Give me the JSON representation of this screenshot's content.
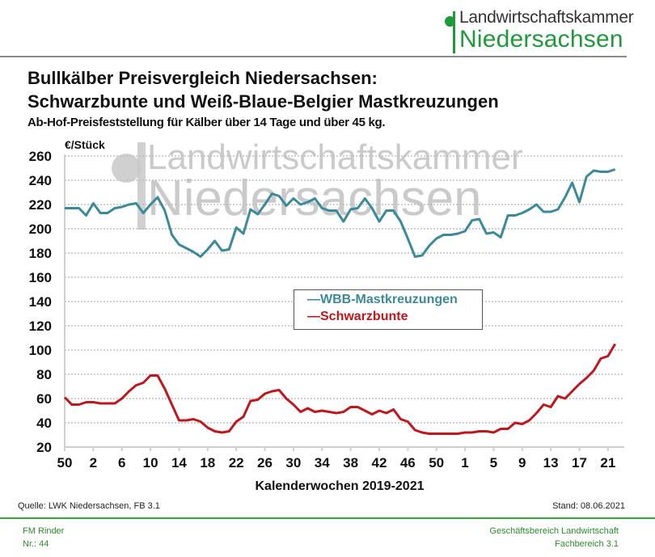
{
  "header": {
    "logo_line1": "Landwirtschaftskammer",
    "logo_line2": "Niedersachsen",
    "title_line1": "Bullkälber Preisvergleich Niedersachsen:",
    "title_line2": "Schwarzbunte und Weiß-Blaue-Belgier Mastkreuzungen",
    "subtitle": "Ab-Hof-Preisfeststellung für Kälber über 14 Tage und über 45 kg."
  },
  "watermark": {
    "line1": "Landwirtschaftskammer",
    "line2": "Niedersachsen"
  },
  "footer": {
    "source": "Quelle: LWK Niedersachsen,  FB 3.1",
    "date": "Stand: 08.06.2021",
    "left_line1": "FM Rinder",
    "left_line2": "Nr.: 44",
    "right_line1": "Geschäftsbereich Landwirtschaft",
    "right_line2": "Fachbereich 3.1"
  },
  "colors": {
    "wbb": "#3a8a9c",
    "schwarzbunte": "#c0171d",
    "brand_green": "#1f9a3a"
  },
  "chart_data": {
    "type": "line",
    "title": "Bullkälber Preisvergleich Niedersachsen: Schwarzbunte und Weiß-Blaue-Belgier Mastkreuzungen",
    "ylabel": "€/Stück",
    "xlabel": "Kalenderwochen  2019-2021",
    "ylim": [
      20,
      260
    ],
    "yticks": [
      20,
      40,
      60,
      80,
      100,
      120,
      140,
      160,
      180,
      200,
      220,
      240,
      260
    ],
    "grid": true,
    "legend_position": "center",
    "x": [
      "50/2019",
      "51/2019",
      "52/2019",
      "1/2020",
      "2/2020",
      "3/2020",
      "4/2020",
      "5/2020",
      "6/2020",
      "7/2020",
      "8/2020",
      "9/2020",
      "10/2020",
      "11/2020",
      "12/2020",
      "13/2020",
      "14/2020",
      "15/2020",
      "16/2020",
      "17/2020",
      "18/2020",
      "19/2020",
      "20/2020",
      "21/2020",
      "22/2020",
      "23/2020",
      "24/2020",
      "25/2020",
      "26/2020",
      "27/2020",
      "28/2020",
      "29/2020",
      "30/2020",
      "31/2020",
      "32/2020",
      "33/2020",
      "34/2020",
      "35/2020",
      "36/2020",
      "37/2020",
      "38/2020",
      "39/2020",
      "40/2020",
      "41/2020",
      "42/2020",
      "43/2020",
      "44/2020",
      "45/2020",
      "46/2020",
      "47/2020",
      "48/2020",
      "49/2020",
      "50/2020",
      "51/2020",
      "52/2020",
      "53/2020",
      "1/2021",
      "2/2021",
      "3/2021",
      "4/2021",
      "5/2021",
      "6/2021",
      "7/2021",
      "8/2021",
      "9/2021",
      "10/2021",
      "11/2021",
      "12/2021",
      "13/2021",
      "14/2021",
      "15/2021",
      "16/2021",
      "17/2021",
      "18/2021",
      "19/2021",
      "20/2021",
      "21/2021",
      "22/2021"
    ],
    "xtick_labels": [
      "50",
      "2",
      "6",
      "10",
      "14",
      "18",
      "22",
      "26",
      "30",
      "34",
      "38",
      "42",
      "46",
      "50",
      "1",
      "5",
      "9",
      "13",
      "17",
      "21"
    ],
    "xtick_every": 4,
    "series": [
      {
        "name": "WBB-Mastkreuzungen",
        "color": "#3a8a9c",
        "values": [
          217,
          217,
          217,
          211,
          221,
          213,
          213,
          217,
          218,
          220,
          221,
          213,
          220,
          226,
          215,
          195,
          187,
          184,
          181,
          177,
          183,
          190,
          182,
          183,
          201,
          196,
          216,
          212,
          220,
          229,
          227,
          219,
          225,
          220,
          222,
          225,
          217,
          215,
          215,
          206,
          216,
          217,
          225,
          217,
          206,
          215,
          215,
          206,
          192,
          177,
          178,
          186,
          192,
          195,
          195,
          196,
          198,
          207,
          208,
          196,
          197,
          193,
          211,
          211,
          213,
          216,
          220,
          214,
          214,
          216,
          226,
          238,
          222,
          243,
          248,
          247,
          247,
          249
        ]
      },
      {
        "name": "Schwarzbunte",
        "color": "#c0171d",
        "values": [
          61,
          55,
          55,
          57,
          57,
          56,
          56,
          56,
          60,
          66,
          71,
          73,
          79,
          79,
          68,
          55,
          42,
          42,
          43,
          41,
          36,
          33,
          32,
          33,
          41,
          45,
          58,
          59,
          64,
          66,
          67,
          60,
          55,
          49,
          52,
          49,
          50,
          49,
          48,
          49,
          53,
          53,
          50,
          47,
          50,
          48,
          51,
          43,
          41,
          34,
          32,
          31,
          31,
          31,
          31,
          31,
          32,
          32,
          33,
          33,
          32,
          35,
          35,
          40,
          39,
          42,
          48,
          55,
          53,
          62,
          60,
          66,
          72,
          77,
          83,
          93,
          95,
          105
        ]
      }
    ]
  }
}
